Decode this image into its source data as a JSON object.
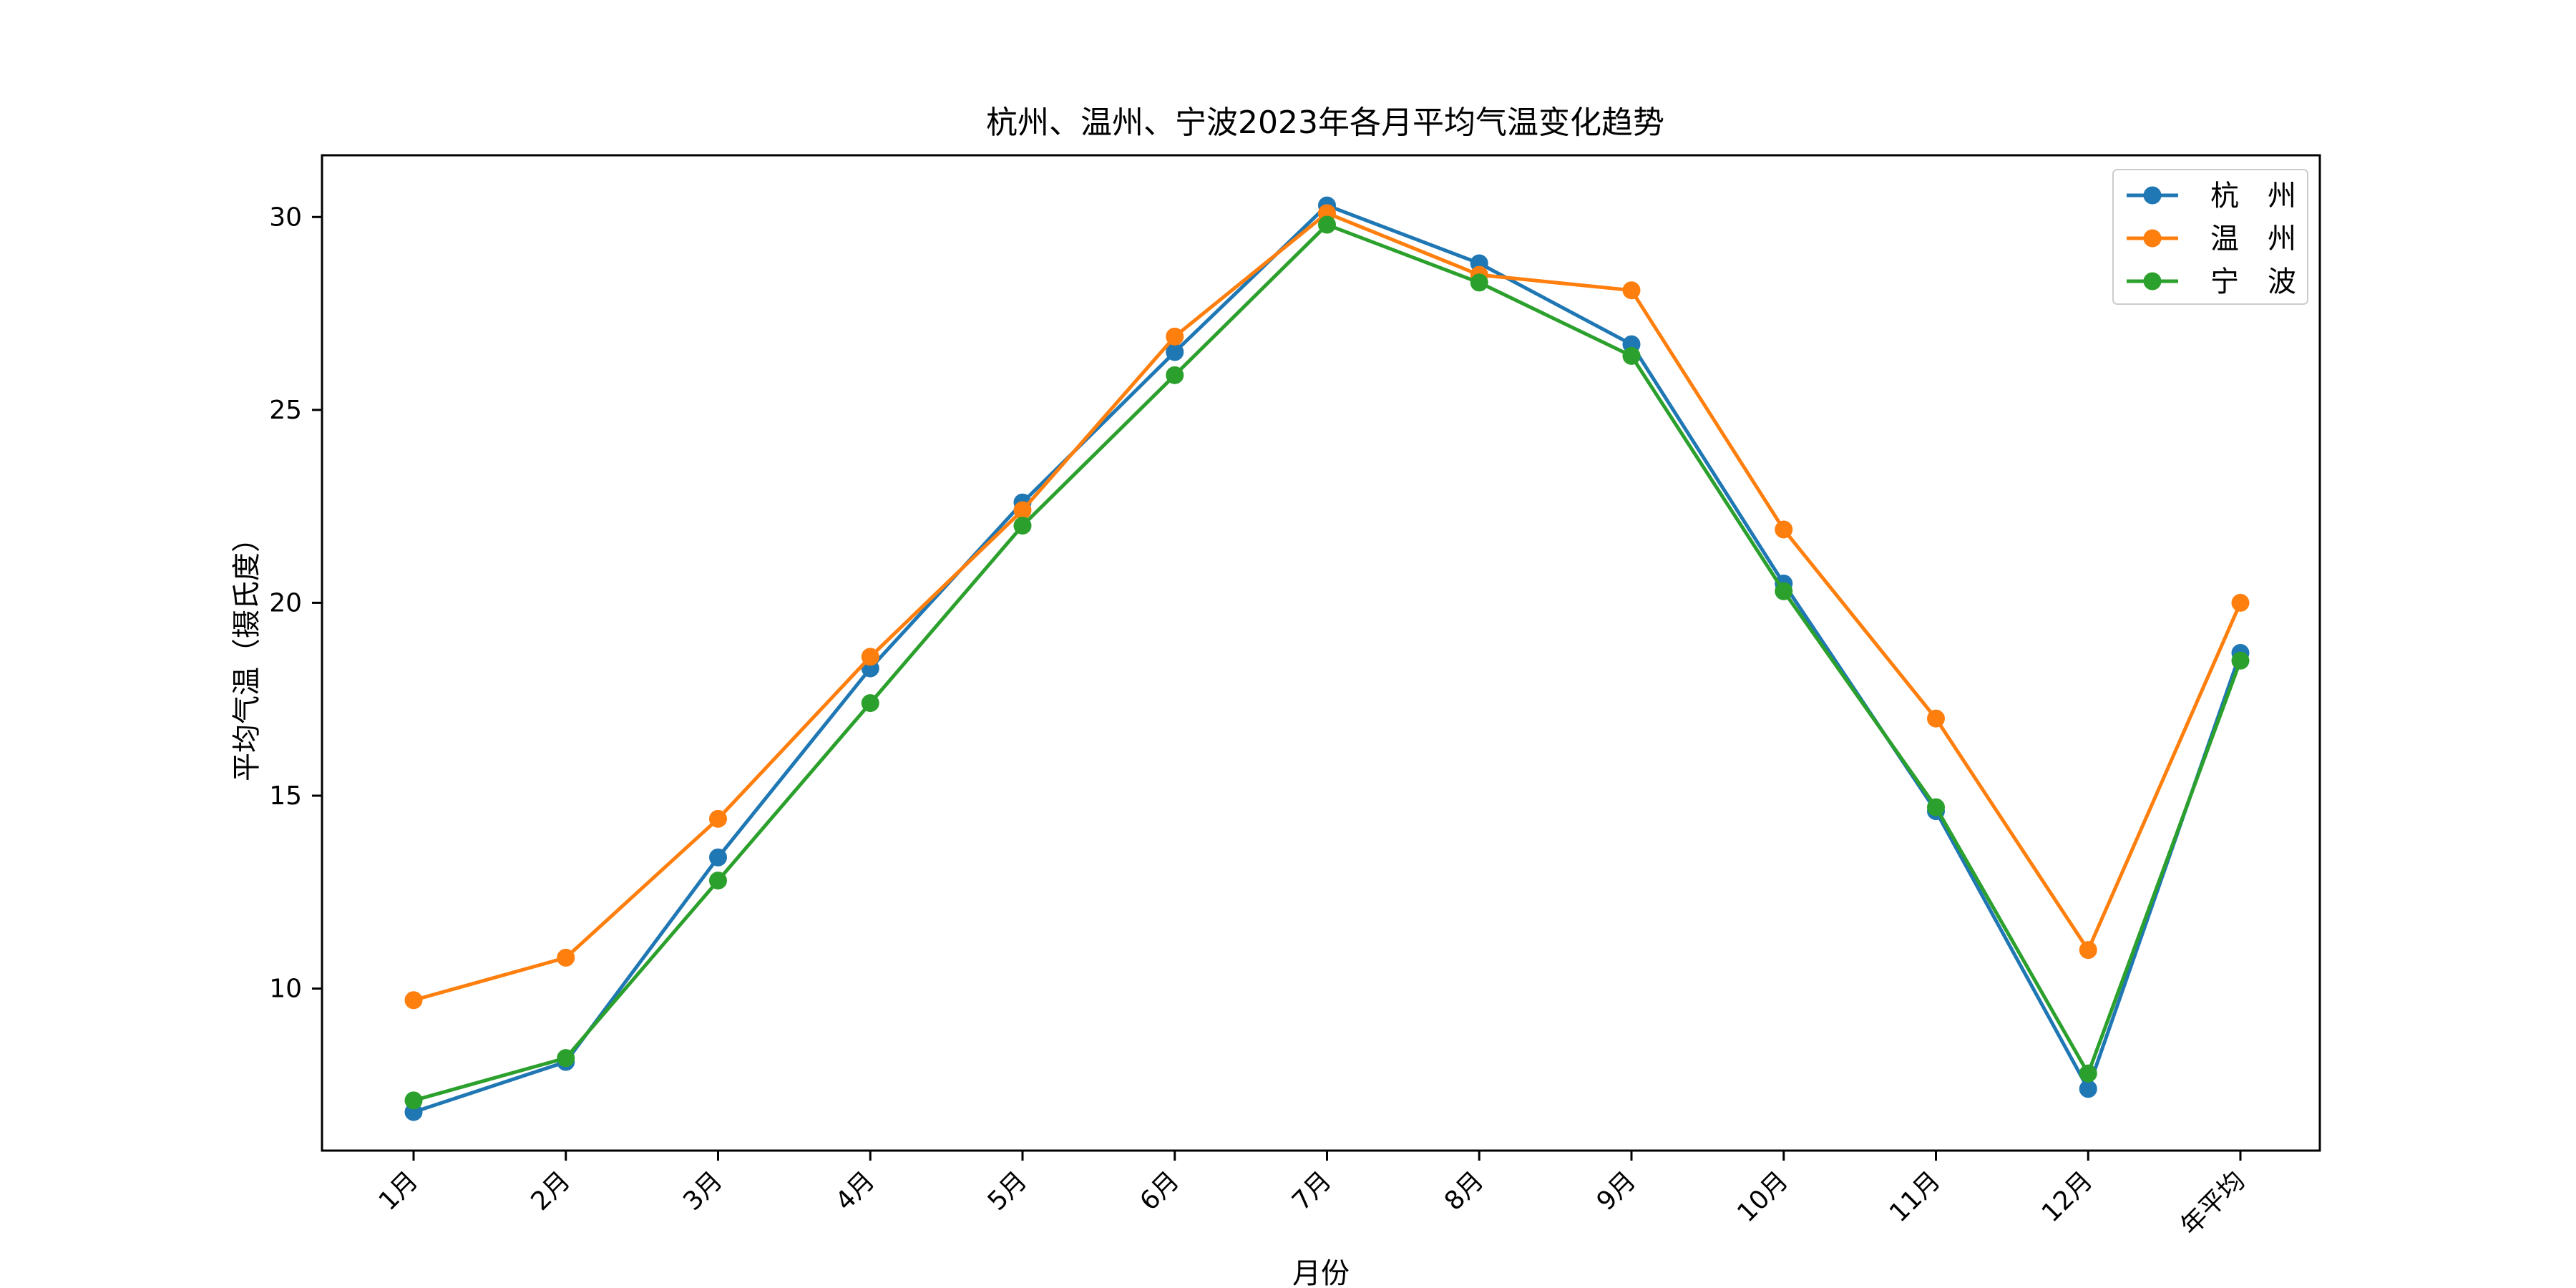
{
  "chart_data": {
    "type": "line",
    "title": "杭州、温州、宁波2023年各月平均气温变化趋势",
    "xlabel": "月份",
    "ylabel": "平均气温（摄氏度）",
    "categories": [
      "1月",
      "2月",
      "3月",
      "4月",
      "5月",
      "6月",
      "7月",
      "8月",
      "9月",
      "10月",
      "11月",
      "12月",
      "年平均"
    ],
    "ylim": [
      5.8,
      31.6
    ],
    "yticks": [
      10,
      15,
      20,
      25,
      30
    ],
    "legend_position": "upper-right",
    "grid": false,
    "series": [
      {
        "name": "杭　州",
        "color": "#1f77b4",
        "values": [
          6.8,
          8.1,
          13.4,
          18.3,
          22.6,
          26.5,
          30.3,
          28.8,
          26.7,
          20.5,
          14.6,
          7.4,
          18.7
        ]
      },
      {
        "name": "温　州",
        "color": "#ff7f0e",
        "values": [
          9.7,
          10.8,
          14.4,
          18.6,
          22.4,
          26.9,
          30.1,
          28.5,
          28.1,
          21.9,
          17.0,
          11.0,
          20.0
        ]
      },
      {
        "name": "宁　波",
        "color": "#2ca02c",
        "values": [
          7.1,
          8.2,
          12.8,
          17.4,
          22.0,
          25.9,
          29.8,
          28.3,
          26.4,
          20.3,
          14.7,
          7.8,
          18.5
        ]
      }
    ]
  }
}
